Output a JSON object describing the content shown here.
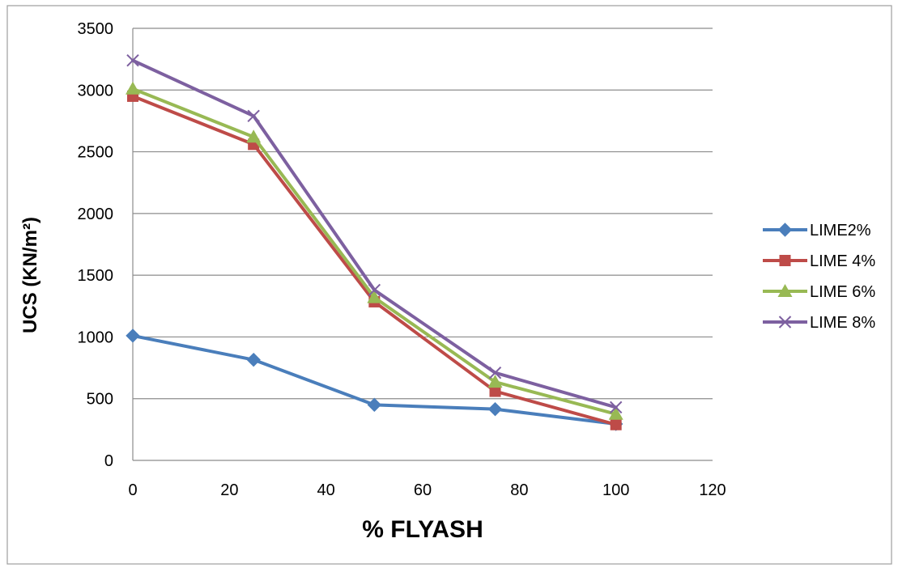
{
  "chart_data": {
    "type": "line",
    "title": "",
    "xlabel": "% FLYASH",
    "ylabel": "UCS (KN/m²)",
    "xlim": [
      0,
      120
    ],
    "ylim": [
      0,
      3500
    ],
    "xticks": [
      0,
      20,
      40,
      60,
      80,
      100,
      120
    ],
    "yticks": [
      0,
      500,
      1000,
      1500,
      2000,
      2500,
      3000,
      3500
    ],
    "grid": "horizontal",
    "legend_position": "right",
    "x": [
      0,
      25,
      50,
      75,
      100
    ],
    "series": [
      {
        "name": "LIME2%",
        "values": [
          1010,
          815,
          450,
          415,
          295
        ],
        "color": "#4a7ebb",
        "marker": "diamond"
      },
      {
        "name": "LIME 4%",
        "values": [
          2950,
          2560,
          1285,
          560,
          290
        ],
        "color": "#be4b48",
        "marker": "square"
      },
      {
        "name": "LIME 6%",
        "values": [
          3010,
          2620,
          1320,
          635,
          375
        ],
        "color": "#98b954",
        "marker": "triangle"
      },
      {
        "name": "LIME 8%",
        "values": [
          3240,
          2790,
          1380,
          710,
          430
        ],
        "color": "#7d60a0",
        "marker": "x"
      }
    ]
  }
}
